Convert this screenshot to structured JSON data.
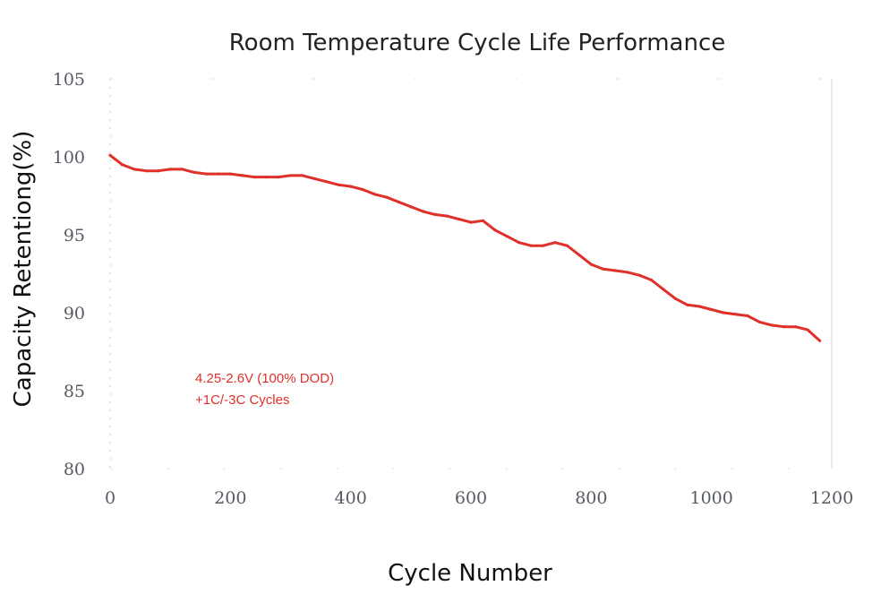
{
  "chart_data": {
    "type": "line",
    "title": "Room Temperature Cycle Life Performance",
    "xlabel": "Cycle Number",
    "ylabel": "Capacity  Retentiong(%)",
    "xlim": [
      0,
      1200
    ],
    "ylim": [
      80,
      105
    ],
    "x_ticks": [
      0,
      200,
      400,
      600,
      800,
      1000,
      1200
    ],
    "y_ticks": [
      80,
      85,
      90,
      95,
      100,
      105
    ],
    "grid": false,
    "annotations": [
      "4.25-2.6V (100% DOD)",
      "+1C/-3C Cycles"
    ],
    "series": [
      {
        "color": "#e0302a",
        "x": [
          0,
          20,
          40,
          60,
          80,
          100,
          120,
          140,
          160,
          180,
          200,
          220,
          240,
          260,
          280,
          300,
          320,
          340,
          360,
          380,
          400,
          420,
          440,
          460,
          480,
          500,
          520,
          540,
          560,
          580,
          600,
          620,
          640,
          660,
          680,
          700,
          720,
          740,
          760,
          780,
          800,
          820,
          840,
          860,
          880,
          900,
          920,
          940,
          960,
          980,
          1000,
          1020,
          1040,
          1060,
          1080,
          1100,
          1120,
          1140,
          1160,
          1180
        ],
        "values": [
          100.1,
          99.5,
          99.2,
          99.1,
          99.1,
          99.2,
          99.2,
          99.0,
          98.9,
          98.9,
          98.9,
          98.8,
          98.7,
          98.7,
          98.7,
          98.8,
          98.8,
          98.6,
          98.4,
          98.2,
          98.1,
          97.9,
          97.6,
          97.4,
          97.1,
          96.8,
          96.5,
          96.3,
          96.2,
          96.0,
          95.8,
          95.9,
          95.3,
          94.9,
          94.5,
          94.3,
          94.3,
          94.5,
          94.3,
          93.7,
          93.1,
          92.8,
          92.7,
          92.6,
          92.4,
          92.1,
          91.5,
          90.9,
          90.5,
          90.4,
          90.2,
          90.0,
          89.9,
          89.8,
          89.4,
          89.2,
          89.1,
          89.1,
          88.9,
          88.2
        ]
      }
    ]
  }
}
